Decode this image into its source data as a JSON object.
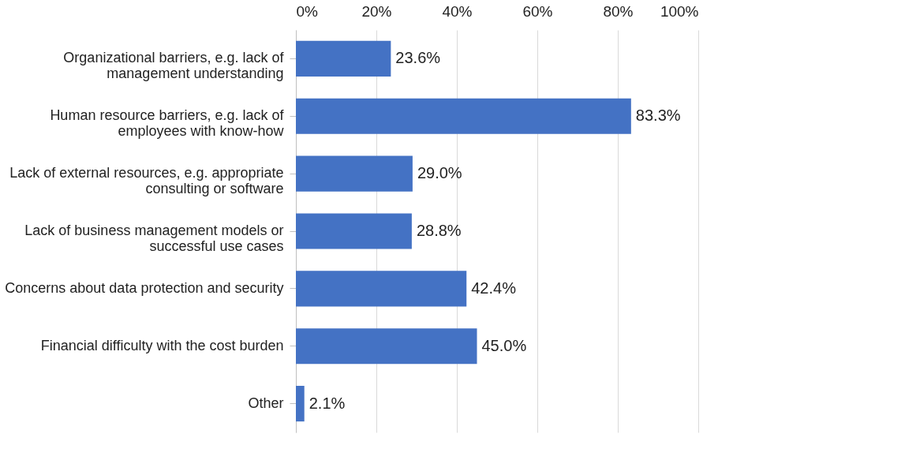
{
  "chart_data": {
    "type": "bar",
    "orientation": "horizontal",
    "categories": [
      "Organizational barriers, e.g. lack of management understanding",
      "Human resource barriers, e.g. lack of employees with know-how",
      "Lack of external resources, e.g. appropriate consulting or software",
      "Lack of business management models or successful use cases",
      "Concerns about data protection and security",
      "Financial difficulty with the cost burden",
      "Other"
    ],
    "values": [
      23.6,
      83.3,
      29.0,
      28.8,
      42.4,
      45.0,
      2.1
    ],
    "value_labels": [
      "23.6%",
      "83.3%",
      "29.0%",
      "28.8%",
      "42.4%",
      "45.0%",
      "2.1%"
    ],
    "color": "#4472c4",
    "xlim": [
      0,
      100
    ],
    "xticks": [
      {
        "value": 0,
        "label": "0%"
      },
      {
        "value": 20,
        "label": "20%"
      },
      {
        "value": 40,
        "label": "40%"
      },
      {
        "value": 60,
        "label": "60%"
      },
      {
        "value": 80,
        "label": "80%"
      },
      {
        "value": 100,
        "label": "100%"
      }
    ],
    "grid": "x"
  }
}
